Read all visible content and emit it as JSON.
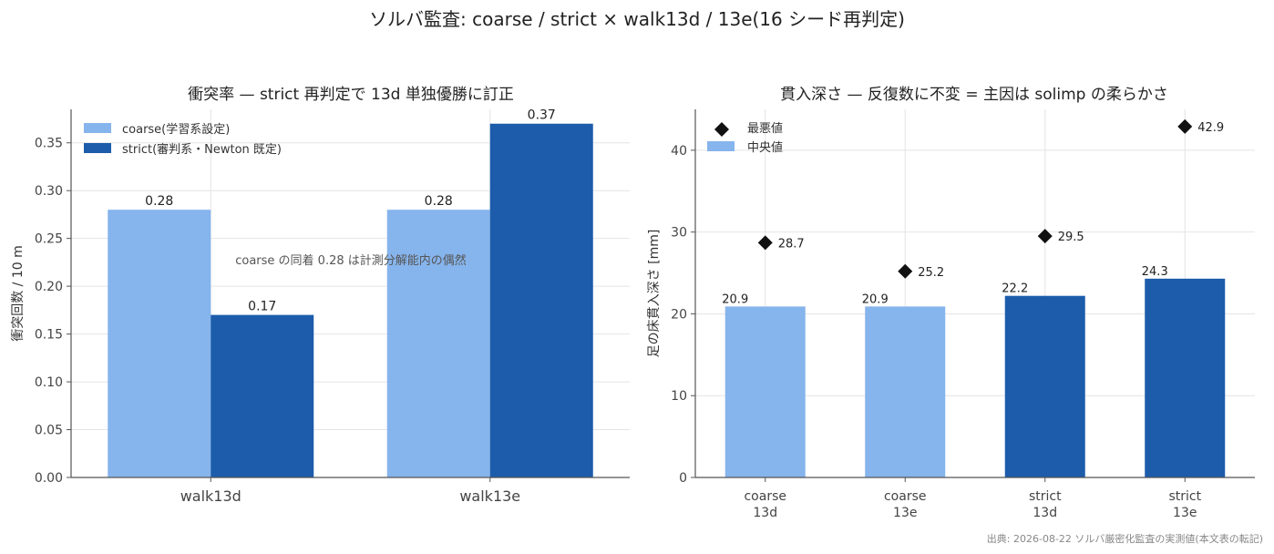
{
  "title": "ソルバ監査: coarse / strict × walk13d / 13e(16 シード再判定)",
  "source": "出典: 2026-08-22 ソルバ厳密化監査の実測値(本文表の転記)",
  "colors": {
    "coarse": "#86b4ec",
    "strict": "#1c5cab",
    "marker": "#111111",
    "grid": "#e4e4e4",
    "axis": "#555555"
  },
  "chart_data": [
    {
      "type": "bar",
      "title": "衝突率 — strict 再判定で 13d 単独優勝に訂正",
      "xlabel": "",
      "ylabel": "衝突回数 / 10 m",
      "categories": [
        "walk13d",
        "walk13e"
      ],
      "series": [
        {
          "name": "coarse(学習系設定)",
          "values": [
            0.28,
            0.28
          ],
          "labels": [
            "0.28",
            "0.28"
          ]
        },
        {
          "name": "strict(審判系・Newton 既定)",
          "values": [
            0.17,
            0.37
          ],
          "labels": [
            "0.17",
            "0.37"
          ]
        }
      ],
      "ylim": [
        0,
        0.385
      ],
      "yticks": [
        0.0,
        0.05,
        0.1,
        0.15,
        0.2,
        0.25,
        0.3,
        0.35
      ],
      "ytick_labels": [
        "0.00",
        "0.05",
        "0.10",
        "0.15",
        "0.20",
        "0.25",
        "0.30",
        "0.35"
      ],
      "grid": true,
      "legend": "top-left",
      "annotation": "coarse の同着 0.28 は計測分解能内の偶然"
    },
    {
      "type": "bar",
      "title": "貫入深さ — 反復数に不変 = 主因は solimp の柔らかさ",
      "xlabel": "",
      "ylabel": "足の床貫入深さ [mm]",
      "categories": [
        {
          "line1": "coarse",
          "line2": "13d"
        },
        {
          "line1": "coarse",
          "line2": "13e"
        },
        {
          "line1": "strict",
          "line2": "13d"
        },
        {
          "line1": "strict",
          "line2": "13e"
        }
      ],
      "bar_series": {
        "name": "中央値",
        "values": [
          20.9,
          20.9,
          22.2,
          24.3
        ],
        "labels": [
          "20.9",
          "20.9",
          "22.2",
          "24.3"
        ],
        "group": [
          "coarse",
          "coarse",
          "strict",
          "strict"
        ]
      },
      "marker_series": {
        "name": "最悪値",
        "values": [
          28.7,
          25.2,
          29.5,
          42.9
        ],
        "labels": [
          "28.7",
          "25.2",
          "29.5",
          "42.9"
        ]
      },
      "ylim": [
        0,
        45
      ],
      "yticks": [
        0,
        10,
        20,
        30,
        40
      ],
      "ytick_labels": [
        "0",
        "10",
        "20",
        "30",
        "40"
      ],
      "grid": true,
      "legend": "top-left"
    }
  ]
}
